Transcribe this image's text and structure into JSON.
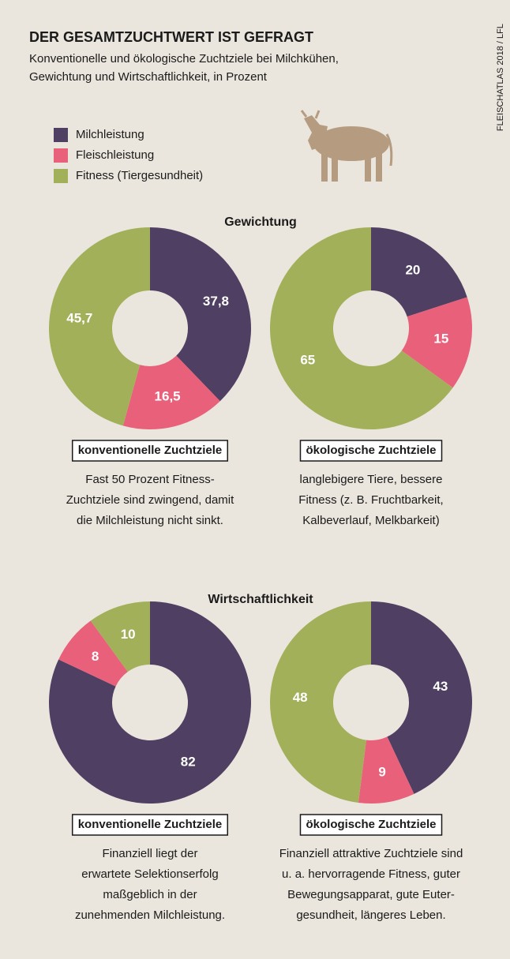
{
  "title": "DER GESAMTZUCHTWERT IST GEFRAGT",
  "subtitle": [
    "Konventionelle und ökologische Zuchtziele bei Milchkühen,",
    "Gewichtung und Wirtschaftlichkeit, in Prozent"
  ],
  "source": "FLEISCHATLAS 2018 / LFL",
  "legend": {
    "categories": [
      "Milchleistung",
      "Fleischleistung",
      "Fitness (Tiergesundheit)"
    ],
    "colors": [
      "#4f3f62",
      "#e8607a",
      "#a3b05a"
    ]
  },
  "sections": [
    "Gewichtung",
    "Wirtschaftlichkeit"
  ],
  "chart_data": [
    {
      "type": "donut",
      "values": [
        37.8,
        16.5,
        45.7
      ],
      "value_labels": [
        "37,8",
        "16,5",
        "45,7"
      ],
      "label": "konventionelle Zuchtziele",
      "note": [
        "Fast 50 Prozent Fitness-",
        "Zuchtziele sind zwingend, damit",
        "die Milchleistung nicht sinkt."
      ]
    },
    {
      "type": "donut",
      "values": [
        20,
        15,
        65
      ],
      "label": "ökologische Zuchtziele",
      "note": [
        "langlebigere Tiere, bessere",
        "Fitness (z. B. Fruchtbarkeit,",
        "Kalbeverlauf, Melkbarkeit)"
      ]
    },
    {
      "type": "donut",
      "values": [
        82,
        8,
        10
      ],
      "label": "konventionelle Zuchtziele",
      "note": [
        "Finanziell liegt der",
        "erwartete Selektionserfolg",
        "maßgeblich in der",
        "zunehmenden Milchleistung."
      ]
    },
    {
      "type": "donut",
      "values": [
        43,
        9,
        48
      ],
      "label": "ökologische Zuchtziele",
      "note": [
        "Finanziell attraktive Zuchtziele sind",
        "u. a. hervorragende Fitness, guter",
        "Bewegungsapparat, gute Euter-",
        "gesundheit, längeres Leben."
      ]
    }
  ]
}
